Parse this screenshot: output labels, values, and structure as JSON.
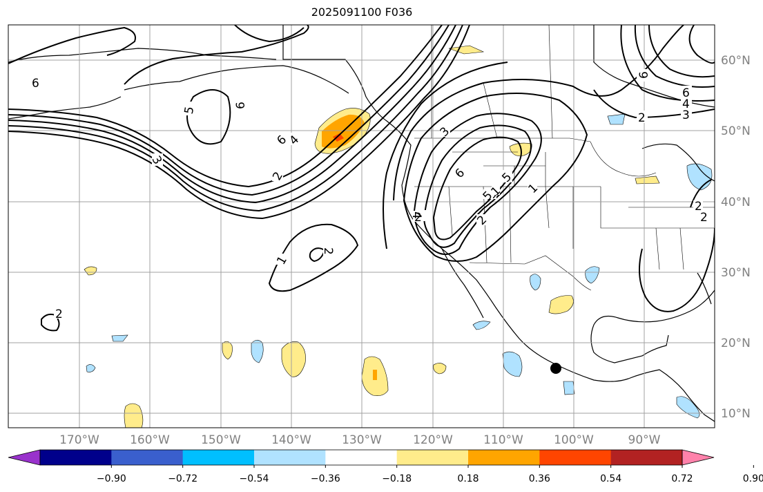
{
  "title": "2025091100 F036",
  "longitude_labels": [
    "170°W",
    "160°W",
    "150°W",
    "140°W",
    "130°W",
    "120°W",
    "110°W",
    "100°W",
    "90°W"
  ],
  "latitude_labels": [
    "60°N",
    "50°N",
    "40°N",
    "30°N",
    "20°N",
    "10°N"
  ],
  "colorbar": {
    "tick_labels": [
      "−0.90",
      "−0.72",
      "−0.54",
      "−0.36",
      "−0.18",
      "0.18",
      "0.36",
      "0.54",
      "0.72",
      "0.90"
    ],
    "colors": [
      "#9932cc",
      "#00008b",
      "#3a5fcd",
      "#00bfff",
      "#b0e2ff",
      "#ffffff",
      "#ffec8b",
      "#ffa500",
      "#ff4500",
      "#b22222",
      "#ff82ab"
    ]
  },
  "contour_labels": [
    "6",
    "5",
    "6",
    "6",
    "4",
    "2",
    "3",
    "2",
    "1",
    "2",
    "3",
    "2",
    "4",
    "5",
    "6",
    "2",
    "1",
    "5",
    "6",
    "4",
    "3",
    "2",
    "6",
    "5",
    "2",
    "1",
    "2"
  ]
}
